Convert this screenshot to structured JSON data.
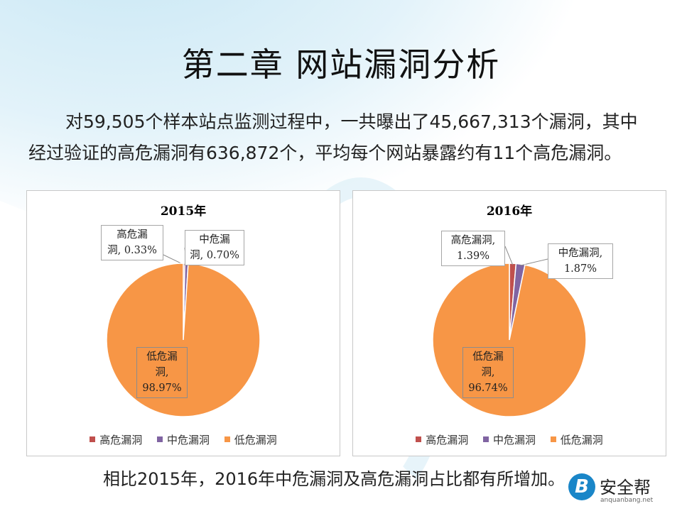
{
  "slide": {
    "title": "第二章  网站漏洞分析",
    "intro_line1": "对59,505个样本站点监测过程中，一共曝出了45,667,313个漏洞，其中",
    "intro_line2": "经过验证的高危漏洞有636,872个，平均每个网站暴露约有11个高危漏洞。",
    "conclusion": "相比2015年，2016年中危漏洞及高危漏洞占比都有所增加。"
  },
  "brand": {
    "logo_letter": "B",
    "name": "安全帮",
    "url": "anquanbang.net"
  },
  "colors": {
    "high": "#c0504d",
    "medium": "#8064a2",
    "low": "#f79646"
  },
  "chart_data": [
    {
      "type": "pie",
      "title": "2015年",
      "categories": [
        "高危漏洞",
        "中危漏洞",
        "低危漏洞"
      ],
      "values": [
        0.33,
        0.7,
        98.97
      ],
      "unit": "%",
      "labels": [
        {
          "line1": "高危漏",
          "line2": "洞, 0.33%"
        },
        {
          "line1": "中危漏",
          "line2": "洞, 0.70%"
        },
        {
          "line1": "低危漏",
          "line2": "洞,",
          "line3": "98.97%"
        }
      ],
      "legend": [
        "高危漏洞",
        "中危漏洞",
        "低危漏洞"
      ],
      "legend_position": "bottom"
    },
    {
      "type": "pie",
      "title": "2016年",
      "categories": [
        "高危漏洞",
        "中危漏洞",
        "低危漏洞"
      ],
      "values": [
        1.39,
        1.87,
        96.74
      ],
      "unit": "%",
      "labels": [
        {
          "line1": "高危漏洞,",
          "line2": "1.39%"
        },
        {
          "line1": "中危漏洞,",
          "line2": "1.87%"
        },
        {
          "line1": "低危漏",
          "line2": "洞,",
          "line3": "96.74%"
        }
      ],
      "legend": [
        "高危漏洞",
        "中危漏洞",
        "低危漏洞"
      ],
      "legend_position": "bottom"
    }
  ]
}
